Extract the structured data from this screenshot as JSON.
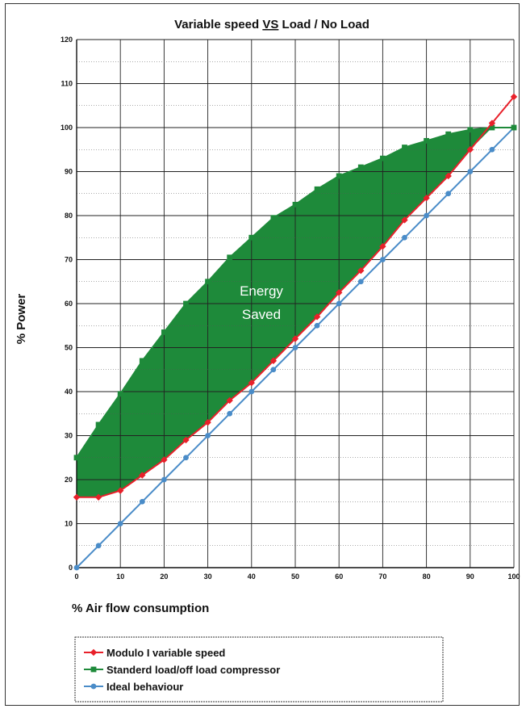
{
  "chart_data": {
    "type": "line",
    "title_prefix": "Variable speed ",
    "title_vs": "VS",
    "title_suffix": " Load / No Load",
    "xlabel": "% Air flow consumption",
    "ylabel": "% Power",
    "xlim": [
      0,
      100
    ],
    "ylim": [
      0,
      120
    ],
    "x_ticks": [
      "0",
      "10",
      "20",
      "30",
      "40",
      "50",
      "60",
      "70",
      "80",
      "90",
      "100"
    ],
    "y_ticks": [
      "0",
      "10",
      "20",
      "30",
      "40",
      "50",
      "60",
      "70",
      "80",
      "90",
      "100",
      "110",
      "120"
    ],
    "grid": true,
    "annotation_line1": "Energy",
    "annotation_line2": "Saved",
    "shaded_region_color": "#1e8a3a",
    "legend_placement": "below",
    "series": [
      {
        "name": "Modulo I  variable speed",
        "color": "#e8202a",
        "marker": "diamond",
        "points": [
          [
            0,
            16
          ],
          [
            5,
            16
          ],
          [
            10,
            17.5
          ],
          [
            15,
            21
          ],
          [
            20,
            24.5
          ],
          [
            25,
            29
          ],
          [
            30,
            33
          ],
          [
            35,
            38
          ],
          [
            40,
            42
          ],
          [
            45,
            47
          ],
          [
            50,
            52
          ],
          [
            55,
            57
          ],
          [
            60,
            62.5
          ],
          [
            65,
            67.5
          ],
          [
            70,
            73
          ],
          [
            75,
            79
          ],
          [
            80,
            84
          ],
          [
            85,
            89
          ],
          [
            90,
            95
          ],
          [
            95,
            101
          ],
          [
            100,
            107
          ]
        ]
      },
      {
        "name": "Standerd load/off load compressor",
        "color": "#1e8a3a",
        "marker": "square",
        "points": [
          [
            0,
            25
          ],
          [
            5,
            32.5
          ],
          [
            10,
            39.5
          ],
          [
            15,
            47
          ],
          [
            20,
            53.5
          ],
          [
            25,
            60
          ],
          [
            30,
            65
          ],
          [
            35,
            70.5
          ],
          [
            40,
            75
          ],
          [
            45,
            79.5
          ],
          [
            50,
            82.5
          ],
          [
            55,
            86
          ],
          [
            60,
            89
          ],
          [
            65,
            91
          ],
          [
            70,
            93
          ],
          [
            75,
            95.5
          ],
          [
            80,
            97
          ],
          [
            85,
            98.5
          ],
          [
            90,
            99.5
          ],
          [
            95,
            100
          ],
          [
            100,
            100
          ]
        ]
      },
      {
        "name": "Ideal behaviour",
        "color": "#4a8cc8",
        "marker": "circle",
        "points": [
          [
            0,
            0
          ],
          [
            5,
            5
          ],
          [
            10,
            10
          ],
          [
            15,
            15
          ],
          [
            20,
            20
          ],
          [
            25,
            25
          ],
          [
            30,
            30
          ],
          [
            35,
            35
          ],
          [
            40,
            40
          ],
          [
            45,
            45
          ],
          [
            50,
            50
          ],
          [
            55,
            55
          ],
          [
            60,
            60
          ],
          [
            65,
            65
          ],
          [
            70,
            70
          ],
          [
            75,
            75
          ],
          [
            80,
            80
          ],
          [
            85,
            85
          ],
          [
            90,
            90
          ],
          [
            95,
            95
          ],
          [
            100,
            100
          ]
        ]
      }
    ]
  }
}
